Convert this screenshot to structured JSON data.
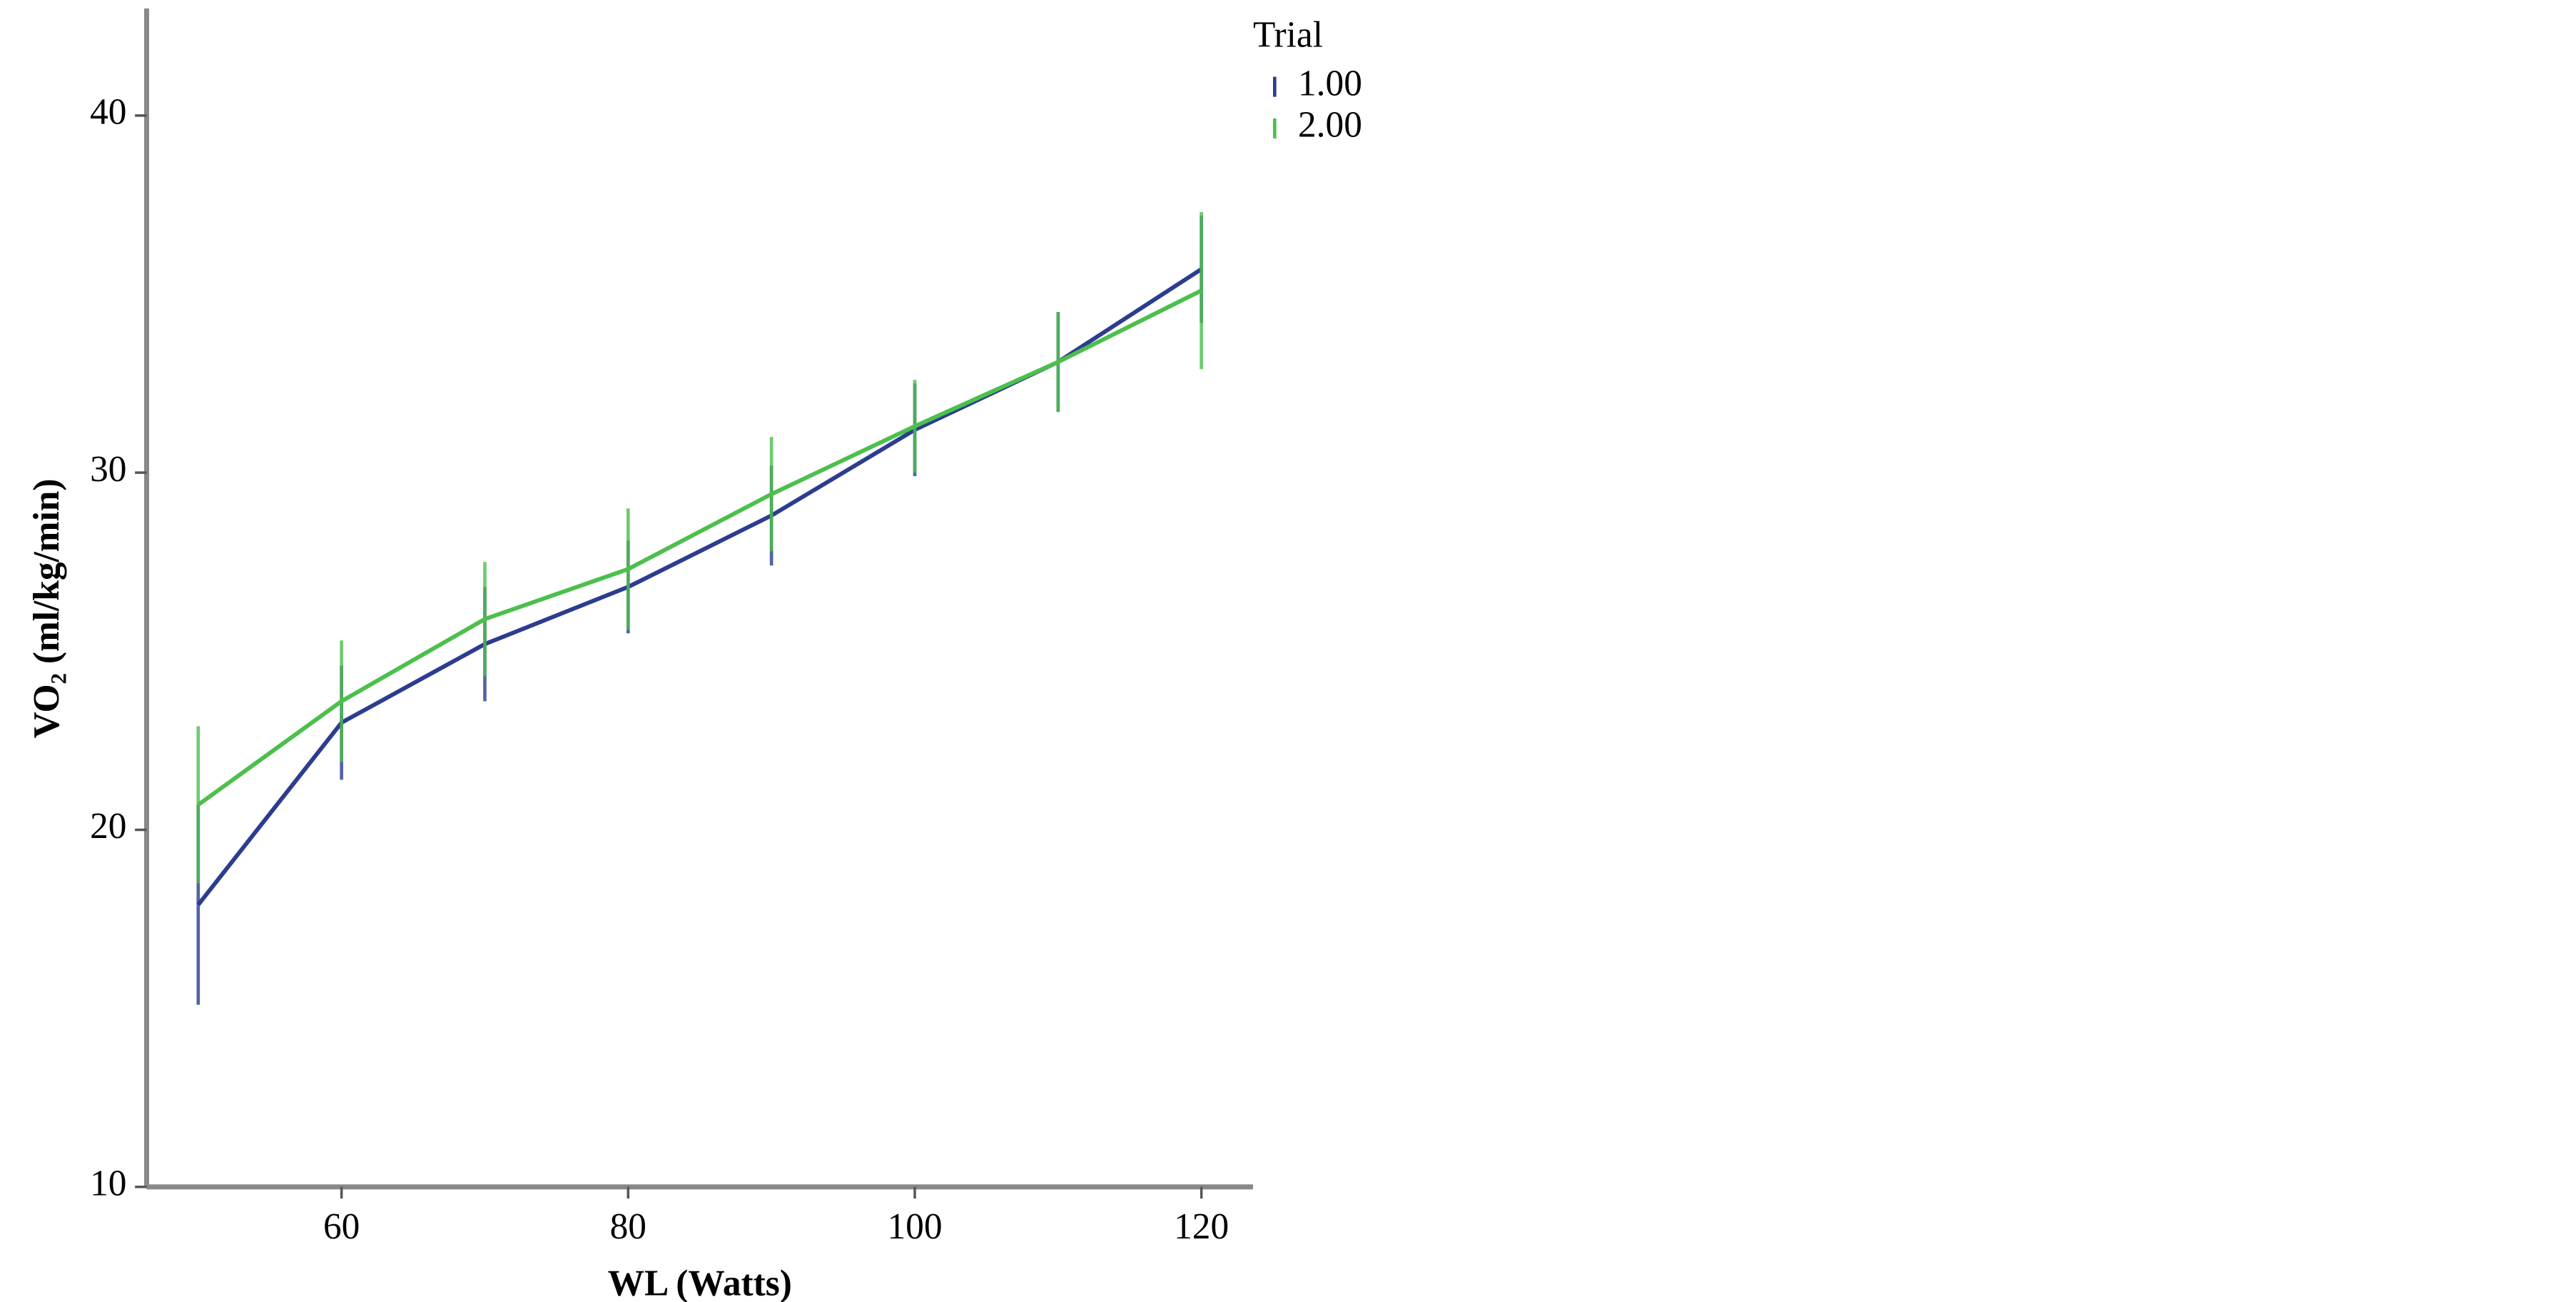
{
  "chart_data": {
    "type": "line",
    "x_label": "WL (Watts)",
    "y_label": "VO₂ (ml/kg/min)",
    "legend_title": "Trial",
    "legend": "upper right",
    "x": [
      50,
      60,
      70,
      80,
      90,
      100,
      110,
      120
    ],
    "series": [
      {
        "name": "1.00",
        "color": "#2b3d8f",
        "values": [
          17.9,
          23.0,
          25.2,
          26.8,
          28.8,
          31.2,
          33.1,
          35.7
        ],
        "errors": [
          2.8,
          1.6,
          1.6,
          1.3,
          1.4,
          1.3,
          1.4,
          1.5
        ]
      },
      {
        "name": "2.00",
        "color": "#4cbf4c",
        "values": [
          20.7,
          23.6,
          25.9,
          27.3,
          29.4,
          31.3,
          33.1,
          35.1
        ],
        "errors": [
          2.2,
          1.7,
          1.6,
          1.7,
          1.6,
          1.3,
          1.4,
          2.2
        ]
      }
    ],
    "xlim": [
      46.4,
      123.6
    ],
    "ylim": [
      10,
      43
    ],
    "xticks": [
      60,
      80,
      100,
      120
    ],
    "yticks": [
      10,
      20,
      30,
      40
    ]
  }
}
